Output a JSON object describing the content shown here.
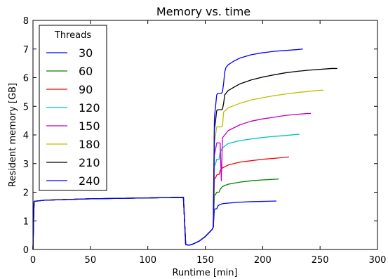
{
  "chart_data": {
    "type": "line",
    "title": "Memory vs. time",
    "xlabel": "Runtime [min]",
    "ylabel": "Resident memory [GB]",
    "xlim": [
      0,
      300
    ],
    "ylim": [
      0,
      8
    ],
    "xticks": [
      0,
      50,
      100,
      150,
      200,
      250,
      300
    ],
    "yticks": [
      0,
      1,
      2,
      3,
      4,
      5,
      6,
      7,
      8
    ],
    "grid": false,
    "legend": {
      "title": "Threads",
      "placement": "top-left"
    },
    "series": [
      {
        "name": "30",
        "color": "#0000ff",
        "x": [
          0,
          0.5,
          1,
          10,
          50,
          100,
          131,
          132,
          133,
          136,
          140,
          145,
          150,
          156,
          157,
          158,
          159,
          160,
          161,
          162,
          163,
          165,
          170,
          180,
          190,
          200,
          210,
          212
        ],
        "y": [
          0,
          1.0,
          1.68,
          1.72,
          1.77,
          1.8,
          1.82,
          1.0,
          0.17,
          0.15,
          0.2,
          0.3,
          0.45,
          0.7,
          0.78,
          1.4,
          1.42,
          1.42,
          1.52,
          1.55,
          1.57,
          1.6,
          1.62,
          1.65,
          1.67,
          1.68,
          1.69,
          1.69
        ]
      },
      {
        "name": "60",
        "color": "#008000",
        "x": [
          0,
          0.5,
          1,
          10,
          50,
          100,
          131,
          132,
          133,
          136,
          140,
          145,
          150,
          156,
          157,
          158,
          159,
          160,
          161,
          162,
          163,
          165,
          170,
          180,
          190,
          200,
          210,
          214
        ],
        "y": [
          0,
          1.0,
          1.68,
          1.72,
          1.77,
          1.8,
          1.82,
          1.0,
          0.17,
          0.15,
          0.2,
          0.3,
          0.45,
          0.7,
          0.78,
          1.9,
          1.92,
          2.0,
          2.0,
          2.0,
          2.1,
          2.2,
          2.28,
          2.35,
          2.4,
          2.43,
          2.45,
          2.46
        ]
      },
      {
        "name": "90",
        "color": "#ff0000",
        "x": [
          0,
          0.5,
          1,
          10,
          50,
          100,
          131,
          132,
          133,
          136,
          140,
          145,
          150,
          156,
          157,
          158,
          159,
          160,
          161,
          162,
          163,
          165,
          170,
          180,
          190,
          200,
          210,
          220,
          223
        ],
        "y": [
          0,
          1.0,
          1.68,
          1.72,
          1.77,
          1.8,
          1.82,
          1.0,
          0.17,
          0.15,
          0.2,
          0.3,
          0.45,
          0.7,
          0.78,
          2.45,
          2.5,
          2.6,
          2.62,
          2.62,
          2.75,
          2.85,
          2.95,
          3.05,
          3.1,
          3.15,
          3.18,
          3.22,
          3.23
        ]
      },
      {
        "name": "120",
        "color": "#00bfbf",
        "x": [
          0,
          0.5,
          1,
          10,
          50,
          100,
          131,
          132,
          133,
          136,
          140,
          145,
          150,
          156,
          157,
          158,
          159,
          160,
          161,
          162,
          163,
          165,
          170,
          180,
          190,
          200,
          210,
          220,
          230,
          232
        ],
        "y": [
          0,
          1.0,
          1.68,
          1.72,
          1.77,
          1.8,
          1.82,
          1.0,
          0.17,
          0.15,
          0.2,
          0.3,
          0.45,
          0.7,
          0.78,
          2.9,
          3.0,
          3.15,
          3.15,
          3.15,
          3.4,
          3.55,
          3.7,
          3.8,
          3.86,
          3.91,
          3.95,
          3.98,
          4.02,
          4.02
        ]
      },
      {
        "name": "150",
        "color": "#bf00bf",
        "x": [
          0,
          0.5,
          1,
          10,
          50,
          100,
          131,
          132,
          133,
          136,
          140,
          145,
          150,
          156,
          157,
          158,
          159,
          160,
          161,
          162,
          163,
          164,
          165,
          170,
          180,
          190,
          200,
          210,
          220,
          230,
          240,
          242
        ],
        "y": [
          0,
          1.0,
          1.68,
          1.72,
          1.77,
          1.8,
          1.82,
          1.0,
          0.17,
          0.15,
          0.2,
          0.3,
          0.45,
          0.7,
          0.78,
          3.3,
          3.5,
          3.72,
          3.72,
          3.72,
          3.72,
          2.4,
          3.9,
          4.15,
          4.35,
          4.48,
          4.56,
          4.62,
          4.68,
          4.72,
          4.75,
          4.75
        ]
      },
      {
        "name": "180",
        "color": "#bfbf00",
        "x": [
          0,
          0.5,
          1,
          10,
          50,
          100,
          131,
          132,
          133,
          136,
          140,
          145,
          150,
          156,
          157,
          158,
          159,
          160,
          161,
          162,
          163,
          164,
          165,
          166,
          170,
          180,
          190,
          200,
          210,
          220,
          230,
          240,
          250,
          253
        ],
        "y": [
          0,
          1.0,
          1.68,
          1.72,
          1.77,
          1.8,
          1.82,
          1.0,
          0.17,
          0.15,
          0.2,
          0.3,
          0.45,
          0.7,
          0.78,
          3.7,
          4.0,
          4.28,
          4.28,
          4.28,
          4.28,
          4.28,
          4.3,
          4.8,
          4.95,
          5.1,
          5.22,
          5.3,
          5.37,
          5.43,
          5.48,
          5.52,
          5.56,
          5.56
        ]
      },
      {
        "name": "210",
        "color": "#000000",
        "x": [
          0,
          0.5,
          1,
          10,
          50,
          100,
          131,
          132,
          133,
          136,
          140,
          145,
          150,
          156,
          157,
          158,
          159,
          160,
          161,
          162,
          163,
          164,
          165,
          166,
          167,
          170,
          180,
          190,
          200,
          210,
          220,
          230,
          240,
          250,
          260,
          265
        ],
        "y": [
          0,
          1.0,
          1.68,
          1.72,
          1.77,
          1.8,
          1.82,
          1.0,
          0.17,
          0.15,
          0.2,
          0.3,
          0.45,
          0.7,
          0.78,
          4.2,
          4.5,
          4.85,
          4.88,
          4.88,
          4.88,
          4.88,
          4.9,
          5.1,
          5.4,
          5.55,
          5.78,
          5.92,
          6.02,
          6.1,
          6.17,
          6.22,
          6.26,
          6.29,
          6.32,
          6.32
        ]
      },
      {
        "name": "240",
        "color": "#0000ff",
        "x": [
          0,
          0.5,
          1,
          10,
          50,
          100,
          131,
          132,
          133,
          136,
          140,
          145,
          150,
          156,
          157,
          158,
          159,
          160,
          161,
          162,
          163,
          164,
          165,
          166,
          167,
          168,
          170,
          175,
          180,
          190,
          200,
          210,
          220,
          230,
          235
        ],
        "y": [
          0,
          1.0,
          1.68,
          1.72,
          1.77,
          1.8,
          1.82,
          1.0,
          0.17,
          0.15,
          0.2,
          0.3,
          0.45,
          0.7,
          0.78,
          4.6,
          5.0,
          5.4,
          5.45,
          5.45,
          5.45,
          5.45,
          5.5,
          5.8,
          6.2,
          6.35,
          6.45,
          6.58,
          6.68,
          6.8,
          6.87,
          6.92,
          6.95,
          6.98,
          7.0
        ]
      }
    ]
  }
}
